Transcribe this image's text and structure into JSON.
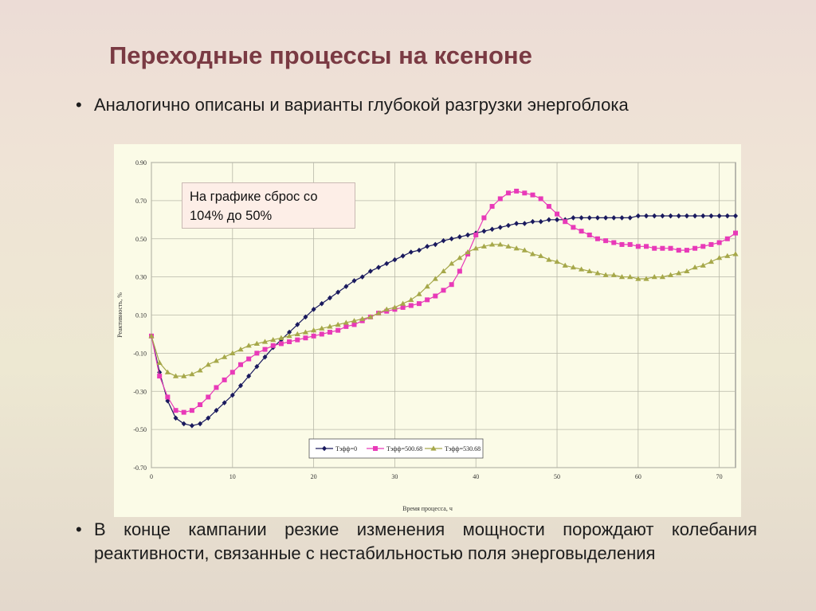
{
  "slide": {
    "title": "Переходные процессы на ксеноне",
    "bullet_symbol": "•",
    "bullet1": "Аналогично описаны и варианты глубокой разгрузки энергоблока",
    "bullet2": "В конце кампании резкие изменения мощности порождают колебания реактивности, связанные с нестабильностью поля энерговыделения",
    "callout": "На графике сброс со 104% до 50%"
  },
  "chart_data": {
    "type": "line",
    "title": "",
    "xlabel": "Время процесса, ч",
    "ylabel": "Реактивность, %",
    "xlim": [
      0,
      72
    ],
    "ylim": [
      -0.7,
      0.9
    ],
    "x_ticks": [
      0,
      10,
      20,
      30,
      40,
      50,
      60,
      70
    ],
    "y_ticks": [
      0.9,
      0.7,
      0.5,
      0.3,
      0.1,
      -0.1,
      -0.3,
      -0.5,
      -0.7
    ],
    "y_tick_labels": [
      "0.90",
      "0.70",
      "0.50",
      "0.30",
      "0.10",
      "-0.10",
      "-0.30",
      "-0.50",
      "-0.70"
    ],
    "grid": true,
    "legend_position": "bottom-center",
    "series": [
      {
        "name": "Tэфф=0",
        "color": "#1a1a5e",
        "marker": "diamond",
        "x": [
          0,
          1,
          2,
          3,
          4,
          5,
          6,
          7,
          8,
          9,
          10,
          11,
          12,
          13,
          14,
          15,
          16,
          17,
          18,
          19,
          20,
          21,
          22,
          23,
          24,
          25,
          26,
          27,
          28,
          29,
          30,
          31,
          32,
          33,
          34,
          35,
          36,
          37,
          38,
          39,
          40,
          41,
          42,
          43,
          44,
          45,
          46,
          47,
          48,
          49,
          50,
          51,
          52,
          53,
          54,
          55,
          56,
          57,
          58,
          59,
          60,
          61,
          62,
          63,
          64,
          65,
          66,
          67,
          68,
          69,
          70,
          71,
          72
        ],
        "y": [
          -0.01,
          -0.2,
          -0.35,
          -0.44,
          -0.47,
          -0.48,
          -0.47,
          -0.44,
          -0.4,
          -0.36,
          -0.32,
          -0.27,
          -0.22,
          -0.17,
          -0.12,
          -0.07,
          -0.03,
          0.01,
          0.05,
          0.09,
          0.13,
          0.16,
          0.19,
          0.22,
          0.25,
          0.28,
          0.3,
          0.33,
          0.35,
          0.37,
          0.39,
          0.41,
          0.43,
          0.44,
          0.46,
          0.47,
          0.49,
          0.5,
          0.51,
          0.52,
          0.53,
          0.54,
          0.55,
          0.56,
          0.57,
          0.58,
          0.58,
          0.59,
          0.59,
          0.6,
          0.6,
          0.6,
          0.61,
          0.61,
          0.61,
          0.61,
          0.61,
          0.61,
          0.61,
          0.61,
          0.62,
          0.62,
          0.62,
          0.62,
          0.62,
          0.62,
          0.62,
          0.62,
          0.62,
          0.62,
          0.62,
          0.62,
          0.62
        ]
      },
      {
        "name": "Tэфф=500.68",
        "color": "#e83ab8",
        "marker": "square",
        "x": [
          0,
          1,
          2,
          3,
          4,
          5,
          6,
          7,
          8,
          9,
          10,
          11,
          12,
          13,
          14,
          15,
          16,
          17,
          18,
          19,
          20,
          21,
          22,
          23,
          24,
          25,
          26,
          27,
          28,
          29,
          30,
          31,
          32,
          33,
          34,
          35,
          36,
          37,
          38,
          39,
          40,
          41,
          42,
          43,
          44,
          45,
          46,
          47,
          48,
          49,
          50,
          51,
          52,
          53,
          54,
          55,
          56,
          57,
          58,
          59,
          60,
          61,
          62,
          63,
          64,
          65,
          66,
          67,
          68,
          69,
          70,
          71,
          72
        ],
        "y": [
          -0.01,
          -0.22,
          -0.33,
          -0.4,
          -0.41,
          -0.4,
          -0.37,
          -0.33,
          -0.28,
          -0.24,
          -0.2,
          -0.16,
          -0.13,
          -0.1,
          -0.08,
          -0.06,
          -0.05,
          -0.04,
          -0.03,
          -0.02,
          -0.01,
          0.0,
          0.01,
          0.02,
          0.04,
          0.05,
          0.07,
          0.09,
          0.11,
          0.12,
          0.13,
          0.14,
          0.15,
          0.16,
          0.18,
          0.2,
          0.23,
          0.26,
          0.33,
          0.42,
          0.52,
          0.61,
          0.67,
          0.71,
          0.74,
          0.75,
          0.74,
          0.73,
          0.71,
          0.67,
          0.63,
          0.59,
          0.56,
          0.54,
          0.52,
          0.5,
          0.49,
          0.48,
          0.47,
          0.47,
          0.46,
          0.46,
          0.45,
          0.45,
          0.45,
          0.44,
          0.44,
          0.45,
          0.46,
          0.47,
          0.48,
          0.5,
          0.53
        ]
      },
      {
        "name": "Tэфф=530.68",
        "color": "#a6a84a",
        "marker": "triangle",
        "x": [
          0,
          1,
          2,
          3,
          4,
          5,
          6,
          7,
          8,
          9,
          10,
          11,
          12,
          13,
          14,
          15,
          16,
          17,
          18,
          19,
          20,
          21,
          22,
          23,
          24,
          25,
          26,
          27,
          28,
          29,
          30,
          31,
          32,
          33,
          34,
          35,
          36,
          37,
          38,
          39,
          40,
          41,
          42,
          43,
          44,
          45,
          46,
          47,
          48,
          49,
          50,
          51,
          52,
          53,
          54,
          55,
          56,
          57,
          58,
          59,
          60,
          61,
          62,
          63,
          64,
          65,
          66,
          67,
          68,
          69,
          70,
          71,
          72
        ],
        "y": [
          -0.01,
          -0.15,
          -0.2,
          -0.22,
          -0.22,
          -0.21,
          -0.19,
          -0.16,
          -0.14,
          -0.12,
          -0.1,
          -0.08,
          -0.06,
          -0.05,
          -0.04,
          -0.03,
          -0.02,
          -0.01,
          0.0,
          0.01,
          0.02,
          0.03,
          0.04,
          0.05,
          0.06,
          0.07,
          0.08,
          0.09,
          0.11,
          0.13,
          0.14,
          0.16,
          0.18,
          0.21,
          0.25,
          0.29,
          0.33,
          0.37,
          0.4,
          0.43,
          0.45,
          0.46,
          0.47,
          0.47,
          0.46,
          0.45,
          0.44,
          0.42,
          0.41,
          0.39,
          0.38,
          0.36,
          0.35,
          0.34,
          0.33,
          0.32,
          0.31,
          0.31,
          0.3,
          0.3,
          0.29,
          0.29,
          0.3,
          0.3,
          0.31,
          0.32,
          0.33,
          0.35,
          0.36,
          0.38,
          0.4,
          0.41,
          0.42
        ]
      }
    ]
  }
}
